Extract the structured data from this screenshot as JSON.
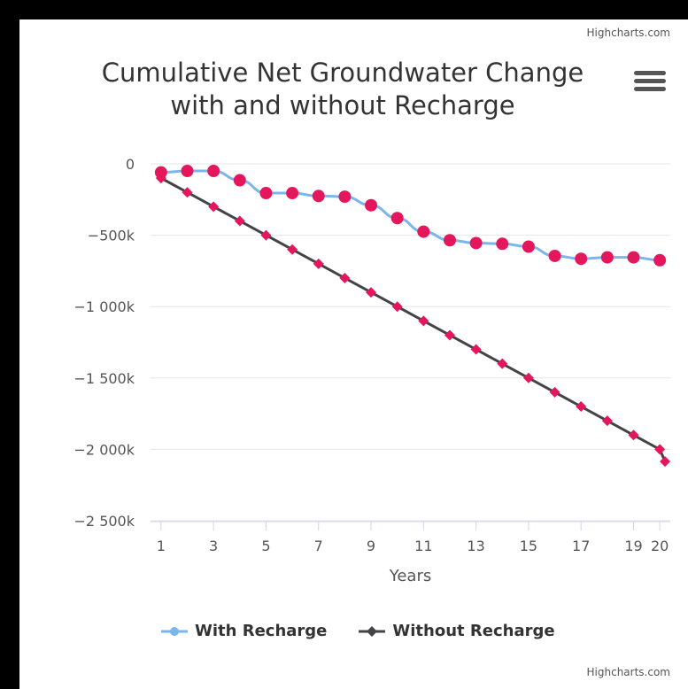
{
  "credits": "Highcharts.com",
  "chart_data": {
    "type": "line",
    "title": "Cumulative Net Groundwater Change with and without Recharge",
    "xlabel": "Years",
    "ylabel": "",
    "x": [
      1,
      2,
      3,
      4,
      5,
      6,
      7,
      8,
      9,
      10,
      11,
      12,
      13,
      14,
      15,
      16,
      17,
      18,
      19,
      20
    ],
    "x_tick_labels": [
      "1",
      "3",
      "5",
      "7",
      "9",
      "11",
      "13",
      "15",
      "17",
      "19",
      "20"
    ],
    "ylim": [
      -2500000,
      0
    ],
    "y_tick_values": [
      0,
      -500000,
      -1000000,
      -1500000,
      -2000000,
      -2500000
    ],
    "y_tick_labels": [
      "0",
      "−500k",
      "−1 000k",
      "−1 500k",
      "−2 000k",
      "−2 500k"
    ],
    "grid": true,
    "legend_position": "bottom-center",
    "series": [
      {
        "name": "With Recharge",
        "color": "#7cb5ec",
        "marker": "circle",
        "marker_color": "#e4175c",
        "values": [
          -60000,
          -50000,
          -50000,
          -115000,
          -205000,
          -205000,
          -225000,
          -230000,
          -290000,
          -380000,
          -475000,
          -535000,
          -555000,
          -560000,
          -580000,
          -645000,
          -665000,
          -655000,
          -655000,
          -675000
        ]
      },
      {
        "name": "Without Recharge",
        "color": "#434348",
        "marker": "diamond",
        "marker_color": "#e4175c",
        "values": [
          -100000,
          -200000,
          -300000,
          -400000,
          -500000,
          -600000,
          -700000,
          -800000,
          -900000,
          -1000000,
          -1100000,
          -1200000,
          -1300000,
          -1400000,
          -1500000,
          -1600000,
          -1700000,
          -1800000,
          -1900000,
          -2000000
        ]
      }
    ],
    "extra_point": {
      "series": "Without Recharge",
      "x": 20.2,
      "y": -2085000
    }
  }
}
